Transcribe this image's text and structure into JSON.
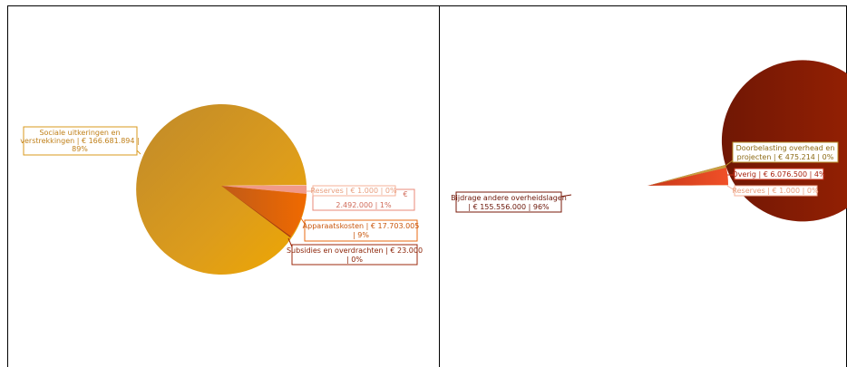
{
  "chart_data": [
    {
      "type": "pie",
      "slices": [
        {
          "label": "Sociale uitkeringen en verstrekkingen | € 166.681.894 | 89%",
          "value": 166681894,
          "percent": 89,
          "color": "#d9991e"
        },
        {
          "label": "Reserves | € 1.000 | 0%",
          "value": 1000,
          "percent": 0,
          "color": "#f4b29a"
        },
        {
          "label": "2.492.000 | 1%",
          "value": 2492000,
          "percent": 1,
          "color": "#f19080"
        },
        {
          "label": "Apparaatskosten | € 17.703.005 | 9%",
          "value": 17703005,
          "percent": 9,
          "color": "#e86a10"
        },
        {
          "label": "Subsidies en overdrachten | € 23.000 | 0%",
          "value": 23000,
          "percent": 0,
          "color": "#b24010"
        }
      ],
      "hidden_text": "€"
    },
    {
      "type": "pie",
      "slices": [
        {
          "label": "Bijdrage andere overheidslagen | € 155.556.000 | 96%",
          "value": 155556000,
          "percent": 96,
          "color": "#8e1a08"
        },
        {
          "label": "Doorbelasting overhead en projecten | € 475.214 | 0%",
          "value": 475214,
          "percent": 0,
          "color": "#c8a040"
        },
        {
          "label": "Overig | € 6.076.500 | 4%",
          "value": 6076500,
          "percent": 4,
          "color": "#e84020"
        },
        {
          "label": "Reserves | € 1.000 | 0%",
          "value": 1000,
          "percent": 0,
          "color": "#f4b29a"
        }
      ]
    }
  ]
}
